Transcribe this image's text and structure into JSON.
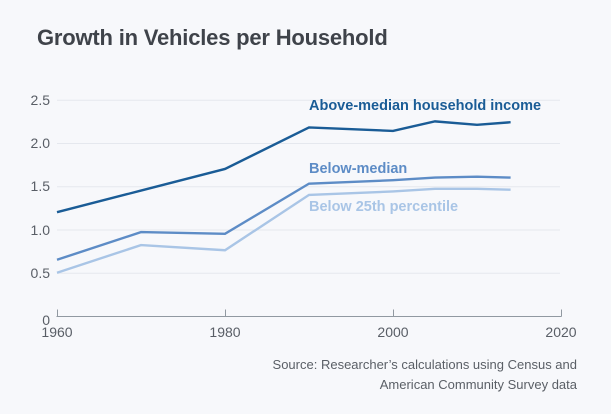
{
  "page": {
    "background": "#f7f8fb"
  },
  "title": "Growth in Vehicles per Household",
  "source": {
    "line1": "Source: Researcher’s calculations using Census and",
    "line2": "American Community Survey data"
  },
  "chart_data": {
    "type": "line",
    "title": "Growth in Vehicles per Household",
    "x": [
      1960,
      1970,
      1980,
      1990,
      2000,
      2005,
      2010,
      2014
    ],
    "series": [
      {
        "name": "Above-median household income",
        "color": "#1a5c96",
        "values": [
          1.2,
          1.45,
          1.7,
          2.18,
          2.14,
          2.25,
          2.21,
          2.24
        ]
      },
      {
        "name": "Below-median",
        "color": "#5d8cc6",
        "values": [
          0.65,
          0.97,
          0.95,
          1.53,
          1.57,
          1.6,
          1.61,
          1.6
        ]
      },
      {
        "name": "Below 25th percentile",
        "color": "#a9c5e6",
        "values": [
          0.5,
          0.82,
          0.76,
          1.4,
          1.44,
          1.47,
          1.47,
          1.46
        ]
      }
    ],
    "xlabel": "",
    "ylabel": "",
    "xlim": [
      1960,
      2020
    ],
    "ylim": [
      0,
      2.5
    ],
    "x_ticks": [
      {
        "label": "1960",
        "year": 1960
      },
      {
        "label": "1980",
        "year": 1980
      },
      {
        "label": "2000",
        "year": 2000
      },
      {
        "label": "2020",
        "year": 2020
      }
    ],
    "y_ticks": [
      {
        "label": "0",
        "value": 0
      },
      {
        "label": "0.5",
        "value": 0.5
      },
      {
        "label": "1.0",
        "value": 1.0
      },
      {
        "label": "1.5",
        "value": 1.5
      },
      {
        "label": "2.0",
        "value": 2.0
      },
      {
        "label": "2.5",
        "value": 2.5
      }
    ],
    "grid": "horizontal",
    "legend": "inline-labels",
    "colors": {
      "grid": "#e5e8ee",
      "axis": "#9199a1",
      "tick_text": "#595e66"
    }
  }
}
